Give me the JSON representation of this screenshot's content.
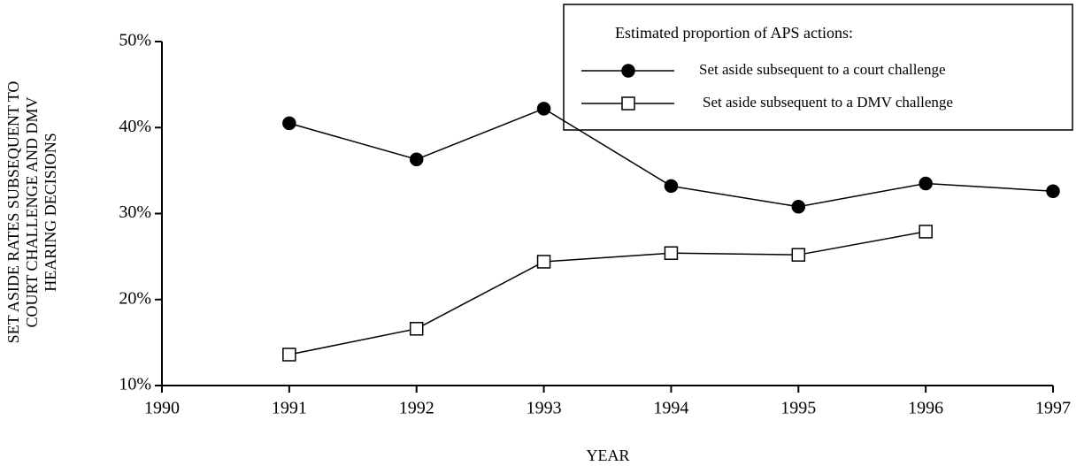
{
  "chart_data": {
    "type": "line",
    "xlabel": "YEAR",
    "ylabel": [
      "SET ASIDE RATES SUBSEQUENT TO",
      "COURT CHALLENGE AND DMV",
      "HEARING DECISIONS"
    ],
    "legend_title": "Estimated proportion of APS actions:",
    "legend_position": "upper right",
    "x": [
      1991,
      1992,
      1993,
      1994,
      1995,
      1996,
      1997
    ],
    "series": [
      {
        "name": "Set aside subsequent to a court challenge",
        "color": "#000000",
        "marker": "circle",
        "values": [
          40.5,
          36.3,
          42.2,
          33.2,
          30.8,
          33.5,
          32.6
        ]
      },
      {
        "name": "Set aside subsequent to a DMV challenge",
        "color": "#000000",
        "marker": "square",
        "values": [
          13.6,
          16.6,
          24.4,
          25.4,
          25.2,
          27.9,
          null
        ]
      }
    ],
    "xlim": [
      1990,
      1997
    ],
    "xticks": [
      1990,
      1991,
      1992,
      1993,
      1994,
      1995,
      1996,
      1997
    ],
    "ylim": [
      10,
      50
    ],
    "yticks": [
      {
        "value": 10,
        "label": "10%"
      },
      {
        "value": 20,
        "label": "20%"
      },
      {
        "value": 30,
        "label": "30%"
      },
      {
        "value": 40,
        "label": "40%"
      },
      {
        "value": 50,
        "label": "50%"
      }
    ],
    "grid": false
  }
}
